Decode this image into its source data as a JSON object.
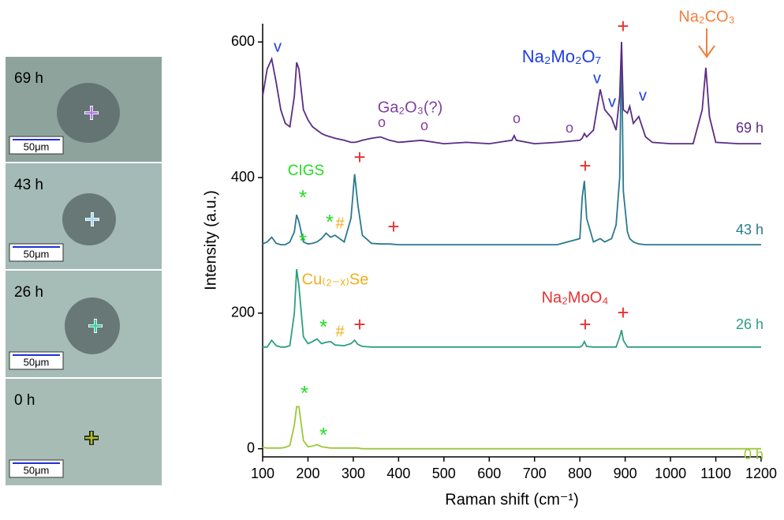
{
  "panels": [
    {
      "label": "69 h",
      "scale": "50μm"
    },
    {
      "label": "43 h",
      "scale": "50μm"
    },
    {
      "label": "26 h",
      "scale": "50μm"
    },
    {
      "label": "0 h",
      "scale": "50μm"
    }
  ],
  "chart_data": {
    "type": "line",
    "x_label": "Raman shift (cm⁻¹)",
    "y_label": "Intensity (a.u.)",
    "xlim": [
      100,
      1200
    ],
    "ylim": [
      -12,
      627
    ],
    "xticks": [
      100,
      200,
      300,
      400,
      500,
      600,
      700,
      800,
      900,
      1000,
      1100,
      1200
    ],
    "yticks": [
      0,
      200,
      400,
      600
    ],
    "x": [
      100,
      110,
      120,
      130,
      140,
      150,
      160,
      170,
      175,
      180,
      190,
      200,
      210,
      220,
      230,
      240,
      250,
      260,
      280,
      295,
      303,
      310,
      320,
      340,
      360,
      380,
      400,
      450,
      500,
      550,
      600,
      650,
      655,
      660,
      700,
      750,
      800,
      805,
      810,
      815,
      830,
      845,
      855,
      870,
      880,
      888,
      892,
      896,
      905,
      910,
      918,
      930,
      945,
      960,
      1000,
      1050,
      1070,
      1078,
      1086,
      1100,
      1150,
      1200
    ],
    "series": [
      {
        "name": "0 h",
        "color": "#9cc83a",
        "values": [
          2,
          1,
          1,
          1,
          1,
          2,
          5,
          35,
          62,
          62,
          12,
          3,
          4,
          6,
          3,
          2,
          1,
          1,
          1,
          1,
          1,
          1,
          0,
          0,
          0,
          0,
          0,
          0,
          0,
          0,
          0,
          0,
          0,
          0,
          0,
          0,
          0,
          0,
          0,
          0,
          0,
          0,
          0,
          0,
          0,
          0,
          0,
          0,
          0,
          0,
          0,
          0,
          0,
          0,
          0,
          0,
          0,
          0,
          0,
          0,
          0,
          0
        ]
      },
      {
        "name": "26 h",
        "color": "#2e9e82",
        "values": [
          150,
          150,
          160,
          152,
          150,
          150,
          152,
          200,
          265,
          240,
          165,
          155,
          158,
          162,
          155,
          157,
          158,
          153,
          152,
          155,
          160,
          154,
          151,
          150,
          150,
          150,
          150,
          150,
          150,
          150,
          150,
          150,
          150,
          150,
          150,
          150,
          150,
          152,
          158,
          151,
          150,
          150,
          150,
          150,
          150,
          165,
          175,
          160,
          150,
          150,
          150,
          150,
          150,
          150,
          150,
          150,
          150,
          150,
          150,
          150,
          150,
          150
        ]
      },
      {
        "name": "43 h",
        "color": "#2b7890",
        "values": [
          302,
          305,
          312,
          303,
          301,
          301,
          305,
          320,
          345,
          335,
          305,
          302,
          303,
          305,
          310,
          318,
          312,
          315,
          305,
          340,
          405,
          360,
          315,
          303,
          302,
          302,
          301,
          301,
          301,
          301,
          301,
          301,
          301,
          301,
          301,
          301,
          310,
          370,
          395,
          340,
          305,
          310,
          305,
          310,
          330,
          400,
          600,
          380,
          320,
          310,
          305,
          302,
          301,
          301,
          301,
          301,
          301,
          301,
          301,
          301,
          301,
          301
        ]
      },
      {
        "name": "69 h",
        "color": "#5b2c83",
        "values": [
          520,
          560,
          575,
          540,
          500,
          480,
          475,
          520,
          570,
          560,
          500,
          485,
          475,
          470,
          465,
          462,
          460,
          458,
          455,
          452,
          452,
          453,
          455,
          458,
          460,
          455,
          452,
          455,
          450,
          452,
          450,
          455,
          462,
          455,
          450,
          452,
          455,
          458,
          465,
          460,
          470,
          530,
          500,
          488,
          470,
          520,
          600,
          500,
          495,
          505,
          480,
          490,
          460,
          452,
          450,
          450,
          500,
          562,
          490,
          452,
          450,
          450
        ]
      }
    ],
    "annotations": [
      {
        "text": "Na₂CO₃",
        "color": "#f07f3c"
      },
      {
        "text": "Na₂Mo₂O₇",
        "color": "#2040e0"
      },
      {
        "text": "Ga₂O₃(?)",
        "color": "#8040a0"
      },
      {
        "text": "CIGS",
        "color": "#22dd22"
      },
      {
        "text": "Cu₍₂₋ₓ₎Se",
        "color": "#f0b020"
      },
      {
        "text": "Na₂MoO₄",
        "color": "#e83030"
      },
      {
        "text": "+",
        "color": "#e83030"
      },
      {
        "text": "+",
        "color": "#e83030"
      },
      {
        "text": "+",
        "color": "#e83030"
      },
      {
        "text": "+",
        "color": "#e83030"
      },
      {
        "text": "+",
        "color": "#e83030"
      },
      {
        "text": "+",
        "color": "#e83030"
      },
      {
        "text": "+",
        "color": "#e83030"
      },
      {
        "text": "v",
        "color": "#2040e0"
      },
      {
        "text": "v",
        "color": "#2040e0"
      },
      {
        "text": "v",
        "color": "#2040e0"
      },
      {
        "text": "v",
        "color": "#2040e0"
      },
      {
        "text": "o",
        "color": "#8040a0"
      },
      {
        "text": "o",
        "color": "#8040a0"
      },
      {
        "text": "o",
        "color": "#8040a0"
      },
      {
        "text": "o",
        "color": "#8040a0"
      },
      {
        "text": "*",
        "color": "#22dd22"
      },
      {
        "text": "*",
        "color": "#22dd22"
      },
      {
        "text": "*",
        "color": "#22dd22"
      },
      {
        "text": "*",
        "color": "#22dd22"
      },
      {
        "text": "*",
        "color": "#22dd22"
      },
      {
        "text": "*",
        "color": "#22dd22"
      },
      {
        "text": "#",
        "color": "#f0b020"
      },
      {
        "text": "#",
        "color": "#f0b020"
      }
    ]
  }
}
